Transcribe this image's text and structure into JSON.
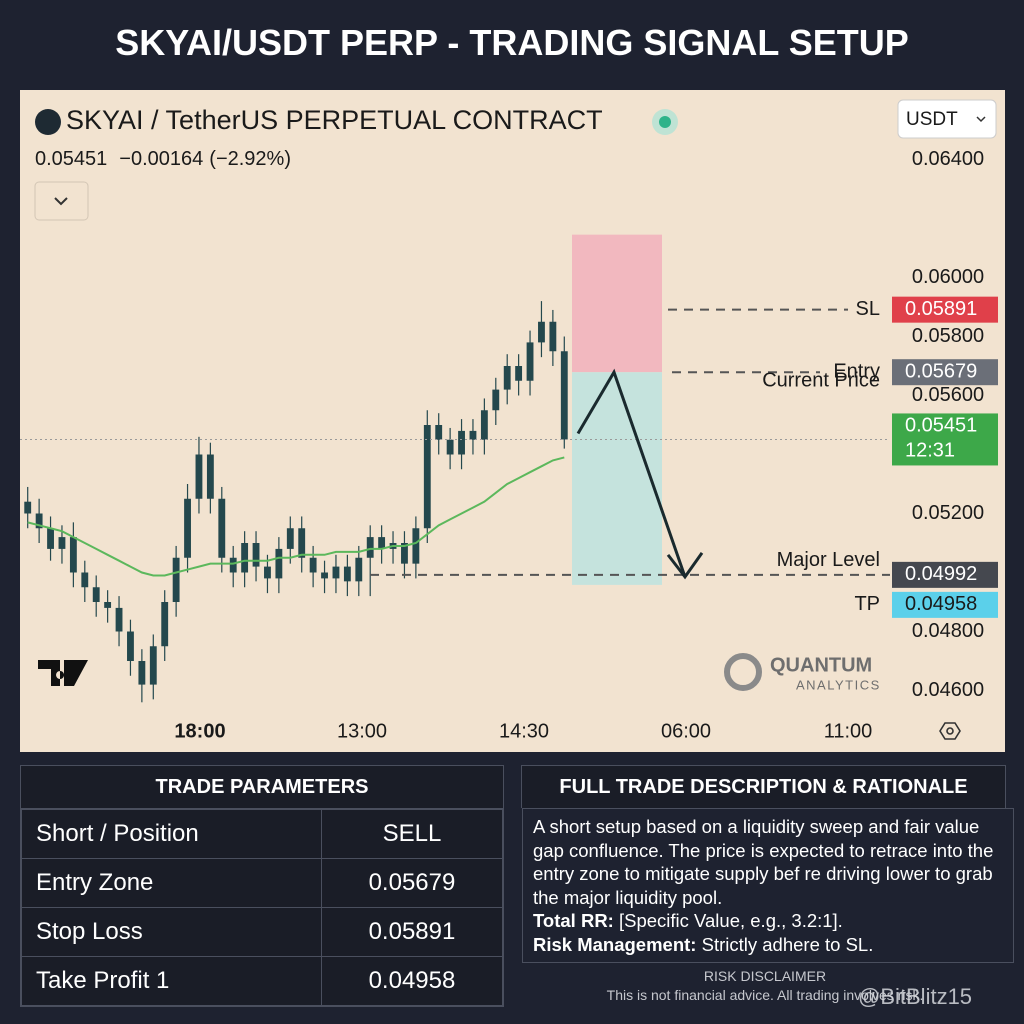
{
  "title": "SKYAI/USDT PERP - TRADING SIGNAL SETUP",
  "chart_data": {
    "type": "candlestick",
    "symbol": "SKYAI / TetherUS PERPETUAL CONTRACT",
    "currency": "USDT",
    "quote": {
      "last": 0.05451,
      "change": {
        "value": -0.00164,
        "label": "−0.00164"
      },
      "change_pct": {
        "value": -2.92,
        "label": "(−2.92%)"
      }
    },
    "x_labels": [
      "18:00",
      "13:00",
      "14:30",
      "06:00",
      "11:00"
    ],
    "ylim": [
      0.045,
      0.065
    ],
    "yticks": [
      {
        "value": 0.064,
        "label": "0.06400"
      },
      {
        "value": 0.06,
        "label": "0.06000"
      },
      {
        "value": 0.058,
        "label": "0.05800"
      },
      {
        "value": 0.056,
        "label": "0.05600"
      },
      {
        "value": 0.052,
        "label": "0.05200"
      },
      {
        "value": 0.048,
        "label": "0.04800"
      },
      {
        "value": 0.046,
        "label": "0.04600"
      }
    ],
    "candle_color": "#24484d",
    "open": [
      0.0524,
      0.052,
      0.0515,
      0.0508,
      0.0512,
      0.05,
      0.0495,
      0.049,
      0.0488,
      0.048,
      0.047,
      0.0462,
      0.0475,
      0.049,
      0.0505,
      0.0525,
      0.054,
      0.0525,
      0.0505,
      0.05,
      0.051,
      0.0502,
      0.0498,
      0.0508,
      0.0515,
      0.0505,
      0.05,
      0.0498,
      0.0502,
      0.0497,
      0.0505,
      0.0512,
      0.0508,
      0.051,
      0.0503,
      0.0515,
      0.055,
      0.0545,
      0.054,
      0.0548,
      0.0545,
      0.0555,
      0.0562,
      0.057,
      0.0565,
      0.0578,
      0.0585,
      0.0575
    ],
    "high": [
      0.0529,
      0.0525,
      0.0519,
      0.0516,
      0.0517,
      0.0504,
      0.0499,
      0.0494,
      0.0492,
      0.0484,
      0.0474,
      0.0479,
      0.0494,
      0.0509,
      0.053,
      0.0546,
      0.0544,
      0.0529,
      0.0509,
      0.0514,
      0.0514,
      0.0506,
      0.0512,
      0.0519,
      0.0519,
      0.0509,
      0.0504,
      0.0506,
      0.0506,
      0.0509,
      0.0516,
      0.0516,
      0.0514,
      0.0514,
      0.0519,
      0.0555,
      0.0554,
      0.0549,
      0.0552,
      0.0552,
      0.0559,
      0.0566,
      0.0574,
      0.0574,
      0.0582,
      0.0592,
      0.0589,
      0.058
    ],
    "low": [
      0.0515,
      0.051,
      0.0504,
      0.0503,
      0.0495,
      0.049,
      0.0485,
      0.0483,
      0.0475,
      0.0465,
      0.0456,
      0.0457,
      0.047,
      0.0485,
      0.05,
      0.052,
      0.052,
      0.05,
      0.0495,
      0.0495,
      0.0497,
      0.0493,
      0.0493,
      0.0503,
      0.05,
      0.0495,
      0.0493,
      0.0493,
      0.0492,
      0.0492,
      0.0492,
      0.0503,
      0.0503,
      0.0498,
      0.0498,
      0.051,
      0.054,
      0.0535,
      0.0535,
      0.054,
      0.054,
      0.055,
      0.0557,
      0.056,
      0.056,
      0.0573,
      0.057,
      0.0542
    ],
    "close": [
      0.052,
      0.0515,
      0.0508,
      0.0512,
      0.05,
      0.0495,
      0.049,
      0.0488,
      0.048,
      0.047,
      0.0462,
      0.0475,
      0.049,
      0.0505,
      0.0525,
      0.054,
      0.0525,
      0.0505,
      0.05,
      0.051,
      0.0502,
      0.0498,
      0.0508,
      0.0515,
      0.0505,
      0.05,
      0.0498,
      0.0502,
      0.0497,
      0.0505,
      0.0512,
      0.0508,
      0.051,
      0.0503,
      0.0515,
      0.055,
      0.0545,
      0.054,
      0.0548,
      0.0545,
      0.0555,
      0.0562,
      0.057,
      0.0565,
      0.0578,
      0.0585,
      0.0575,
      0.05451
    ],
    "ma_color": "#5cb85c",
    "ma": [
      0.0517,
      0.0516,
      0.0515,
      0.0514,
      0.0512,
      0.051,
      0.0508,
      0.0506,
      0.0504,
      0.0502,
      0.05,
      0.0499,
      0.0499,
      0.05,
      0.0501,
      0.0502,
      0.0503,
      0.0503,
      0.0503,
      0.0504,
      0.0504,
      0.0504,
      0.0505,
      0.0505,
      0.0506,
      0.0506,
      0.0506,
      0.0507,
      0.0507,
      0.0507,
      0.0508,
      0.0508,
      0.0509,
      0.0509,
      0.051,
      0.0513,
      0.0516,
      0.0518,
      0.052,
      0.0522,
      0.0524,
      0.0527,
      0.053,
      0.0532,
      0.0534,
      0.0536,
      0.0538,
      0.0539
    ],
    "levels": [
      {
        "name": "SL",
        "value": 0.05891,
        "color": "#e0404a",
        "text_color": "#ffffff"
      },
      {
        "name": "Entry",
        "value": 0.05679,
        "color": "#6b6f78",
        "text_color": "#ffffff"
      },
      {
        "name": "Current Price",
        "value": 0.05451,
        "color": "#3da849",
        "text_color": "#ffffff",
        "countdown": "12:31"
      },
      {
        "name": "Major Level",
        "value": 0.04992,
        "color": "#45484f",
        "text_color": "#ffffff"
      },
      {
        "name": "TP",
        "value": 0.04958,
        "color": "#5bd0ea",
        "text_color": "#1a1a1a"
      }
    ],
    "stop_zone_color": "#f2b8bf",
    "target_zone_color": "#c5e3dd",
    "brand": "QUANTUM",
    "brand_sub": "ANALYTICS"
  },
  "trade_parameters": {
    "title": "TRADE PARAMETERS",
    "rows": [
      [
        "Short / Position",
        "SELL"
      ],
      [
        "Entry Zone",
        0.05679
      ],
      [
        "Stop Loss",
        0.05891
      ],
      [
        "Take Profit 1",
        0.04958
      ]
    ]
  },
  "description": {
    "title": "FULL TRADE DESCRIPTION & RATIONALE",
    "body": "A short setup based on a liquidity sweep and fair value gap confluence. The price is expected to retrace into the entry zone to mitigate supply bef re driving lower to grab the major liquidity pool.",
    "items": [
      {
        "label": "Total RR:",
        "text": "[Specific Value, e.g., 3.2:1]."
      },
      {
        "label": "Risk Management:",
        "text": "Strictly adhere to SL."
      }
    ]
  },
  "disclaimer": {
    "title": "RISK DISCLAIMER",
    "text": "This is not financial advice. All trading involves risk."
  },
  "watermark": "@BitBlitz15"
}
